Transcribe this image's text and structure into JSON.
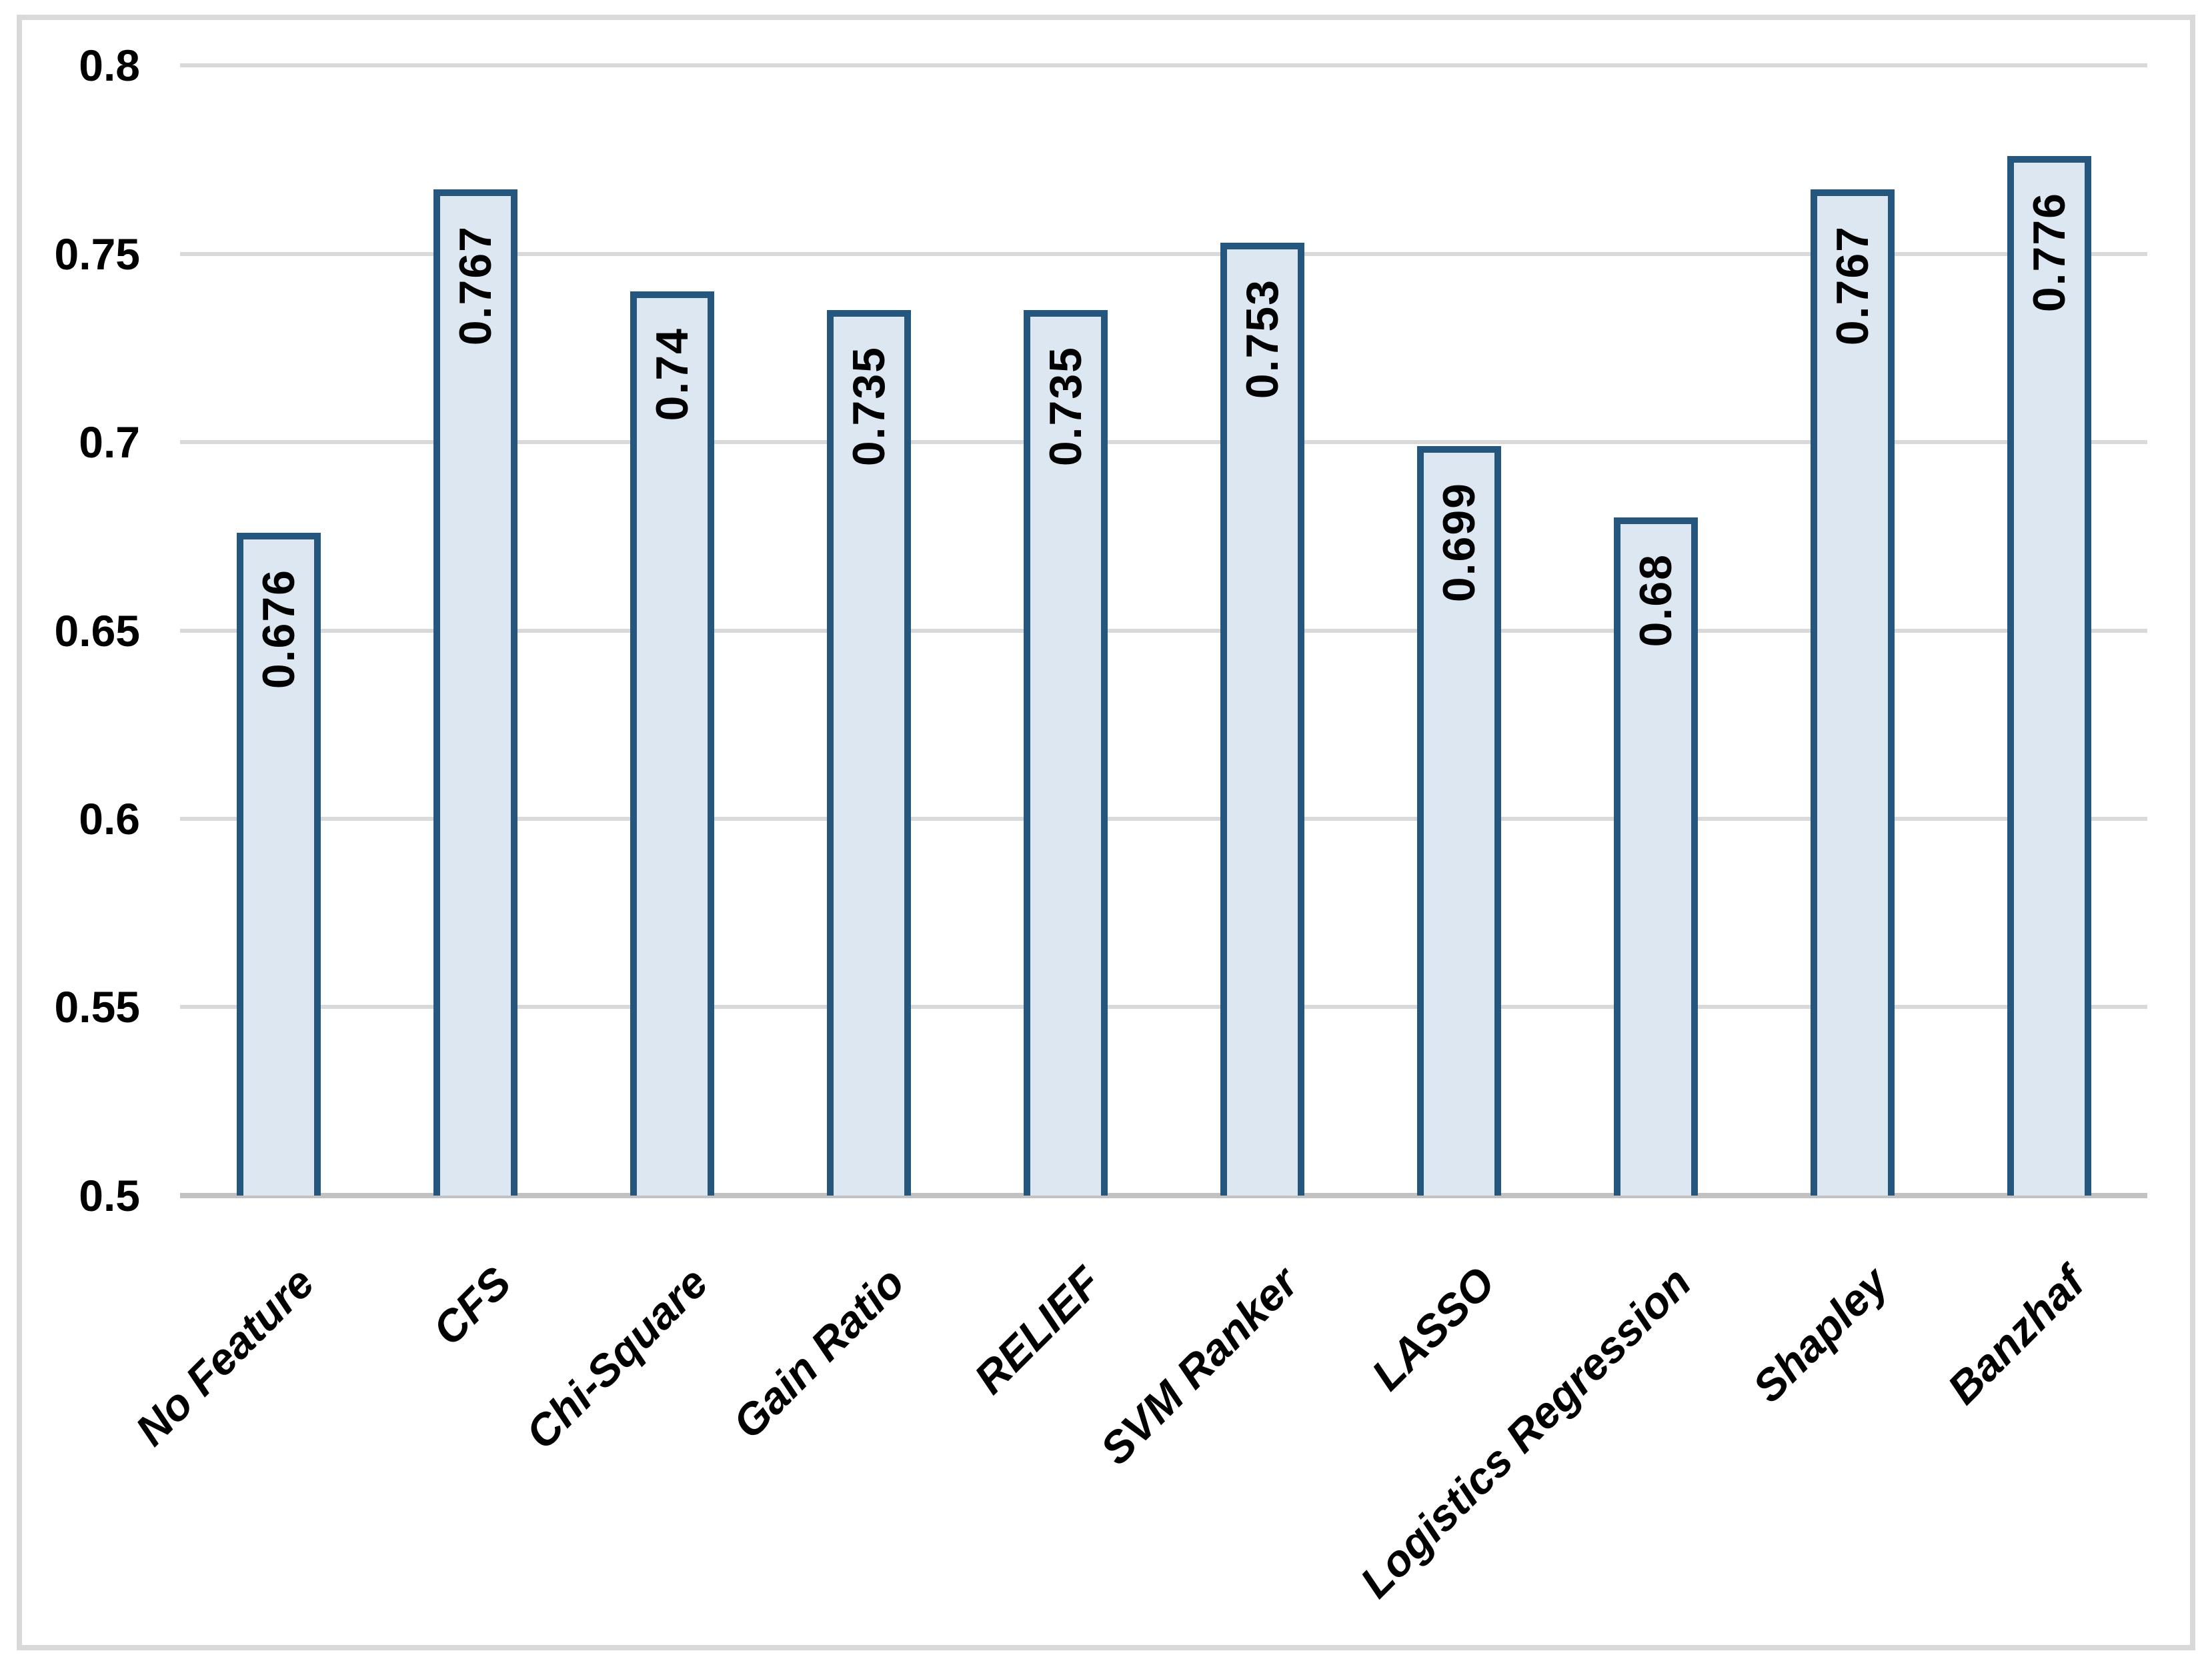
{
  "chart_data": {
    "type": "bar",
    "title": "",
    "xlabel": "",
    "ylabel": "",
    "categories": [
      "No Feature",
      "CFS",
      "Chi-Square",
      "Gain Ratio",
      "RELIEF",
      "SVM Ranker",
      "LASSO",
      "Logistics Regression",
      "Shapley",
      "Banzhaf"
    ],
    "values": [
      0.676,
      0.767,
      0.74,
      0.735,
      0.735,
      0.753,
      0.699,
      0.68,
      0.767,
      0.776
    ],
    "data_labels": [
      "0.676",
      "0.767",
      "0.74",
      "0.735",
      "0.735",
      "0.753",
      "0.699",
      "0.68",
      "0.767",
      "0.776"
    ],
    "ylim": [
      0.5,
      0.8
    ],
    "ytick_step": 0.05,
    "yticks": [
      "0.8",
      "0.75",
      "0.7",
      "0.65",
      "0.6",
      "0.55",
      "0.5"
    ],
    "grid": true,
    "legend": false,
    "x_label_rotation_deg": 45,
    "colors": {
      "bar_fill": "#dce7f2",
      "bar_border": "#24567e",
      "gridline": "#d9d9d9",
      "axis_line": "#c2c2c2",
      "frame_border": "#d9d9d9",
      "label_text": "#000000"
    }
  }
}
